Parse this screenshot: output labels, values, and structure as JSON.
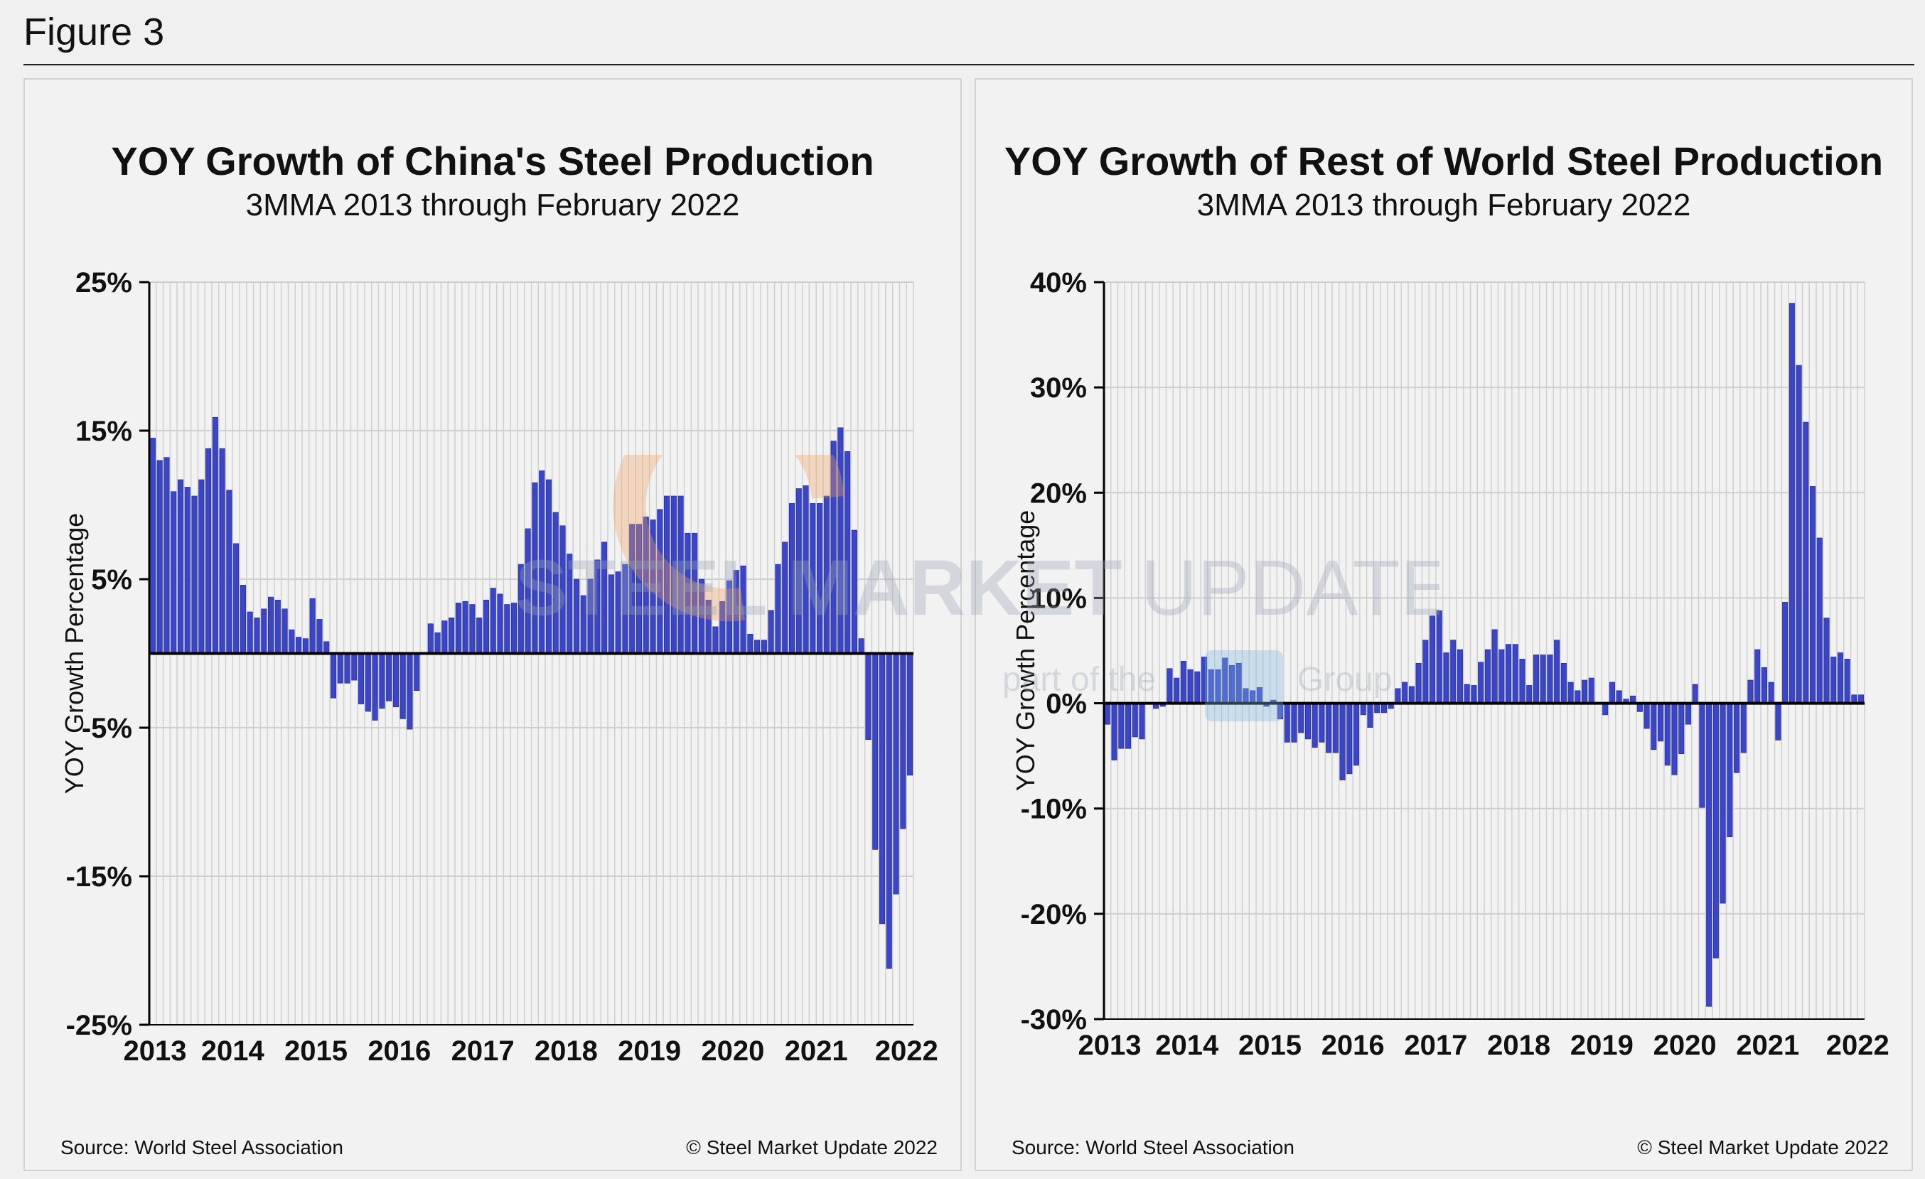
{
  "figure_title": "Figure 3",
  "panels": {
    "left": {
      "source": "Source: World Steel Association",
      "copyright": "© Steel Market Update 2022"
    },
    "right": {
      "source": "Source: World Steel Association",
      "copyright": "© Steel Market Update 2022"
    }
  },
  "watermark": {
    "brand": "STEEL MARKET",
    "brand_suffix": "UPDATE",
    "tagline_left": "part of the",
    "tagline_right": "Group"
  },
  "colors": {
    "bar": "#3a45c8",
    "bar_edge": "#1d2590",
    "grid": "#cfcfcf",
    "zero_line": "#000000",
    "watermark_orange": "#f0a060",
    "watermark_gray": "#9aa4b4"
  },
  "chart_data": [
    {
      "type": "bar",
      "title": "YOY Growth of China's Steel Production",
      "subtitle": "3MMA 2013 through February 2022",
      "xlabel": "",
      "ylabel": "YOY Growth Percentage",
      "ylim": [
        -25,
        25
      ],
      "yticks": [
        25,
        15,
        5,
        -5,
        -15,
        -25
      ],
      "ytick_labels": [
        "25%",
        "15%",
        "5%",
        "-5%",
        "-15%",
        "-25%"
      ],
      "x_tick_labels": [
        "2013",
        "2014",
        "2015",
        "2016",
        "2017",
        "2018",
        "2019",
        "2020",
        "2021",
        "2022"
      ],
      "x_start": "2013-01",
      "x_end": "2022-02",
      "grid": true,
      "values": [
        14.5,
        13.0,
        13.2,
        10.9,
        11.7,
        11.2,
        10.6,
        11.7,
        13.8,
        15.9,
        13.8,
        11.0,
        7.4,
        4.6,
        2.8,
        2.4,
        3.0,
        3.8,
        3.6,
        3.0,
        1.6,
        1.1,
        1.0,
        3.7,
        2.3,
        0.8,
        -3.0,
        -2.0,
        -2.0,
        -1.8,
        -3.4,
        -3.9,
        -4.5,
        -3.7,
        -3.2,
        -3.6,
        -4.4,
        -5.1,
        -2.5,
        0.0,
        2.0,
        1.4,
        2.2,
        2.4,
        3.4,
        3.5,
        3.3,
        2.4,
        3.6,
        4.4,
        4.0,
        3.3,
        3.4,
        6.0,
        8.4,
        11.5,
        12.3,
        11.7,
        9.5,
        8.6,
        6.7,
        5.0,
        3.9,
        5.0,
        6.3,
        7.5,
        5.3,
        5.5,
        6.0,
        8.7,
        8.7,
        9.2,
        9.0,
        9.7,
        10.6,
        10.6,
        10.6,
        8.1,
        8.1,
        5.0,
        3.6,
        1.8,
        3.5,
        4.9,
        5.6,
        5.9,
        1.3,
        0.9,
        0.9,
        2.9,
        6.0,
        7.5,
        10.1,
        11.1,
        11.3,
        10.1,
        10.1,
        10.6,
        14.3,
        15.2,
        13.6,
        8.3,
        1.0,
        -5.8,
        -13.2,
        -18.2,
        -21.2,
        -16.2,
        -11.8,
        -8.2
      ]
    },
    {
      "type": "bar",
      "title": "YOY Growth of Rest of World Steel Production",
      "subtitle": "3MMA 2013 through February 2022",
      "xlabel": "",
      "ylabel": "YOY Growth Percentage",
      "ylim": [
        -30,
        40
      ],
      "yticks": [
        40,
        30,
        20,
        10,
        0,
        -10,
        -20,
        -30
      ],
      "ytick_labels": [
        "40%",
        "30%",
        "20%",
        "10%",
        "0%",
        "-10%",
        "-20%",
        "-30%"
      ],
      "x_tick_labels": [
        "2013",
        "2014",
        "2015",
        "2016",
        "2017",
        "2018",
        "2019",
        "2020",
        "2021",
        "2022"
      ],
      "x_start": "2013-01",
      "x_end": "2022-02",
      "grid": true,
      "values": [
        -2.0,
        -5.4,
        -4.3,
        -4.3,
        -3.2,
        -3.4,
        0.0,
        -0.5,
        -0.3,
        3.3,
        2.4,
        4.0,
        3.2,
        3.0,
        4.4,
        3.2,
        3.2,
        4.3,
        3.6,
        3.8,
        1.4,
        1.2,
        1.5,
        -0.3,
        0.3,
        -1.5,
        -3.7,
        -3.7,
        -2.8,
        -3.4,
        -4.2,
        -3.7,
        -4.7,
        -4.7,
        -7.3,
        -6.7,
        -5.9,
        -1.1,
        -2.3,
        -0.9,
        -0.9,
        -0.5,
        1.4,
        2.0,
        1.6,
        3.8,
        6.0,
        8.3,
        8.8,
        4.8,
        6.0,
        5.1,
        1.8,
        1.7,
        3.9,
        5.1,
        7.0,
        5.1,
        5.6,
        5.6,
        4.2,
        1.7,
        4.6,
        4.6,
        4.6,
        6.0,
        3.8,
        2.0,
        1.2,
        2.2,
        2.4,
        0.0,
        -1.1,
        2.0,
        1.2,
        0.4,
        0.7,
        -0.8,
        -2.4,
        -4.4,
        -3.6,
        -5.9,
        -6.8,
        -4.8,
        -2.0,
        1.8,
        -9.9,
        -28.8,
        -24.2,
        -19.0,
        -12.7,
        -6.6,
        -4.7,
        2.2,
        5.1,
        3.4,
        2.0,
        -3.5,
        9.6,
        38.0,
        32.1,
        26.7,
        20.6,
        15.7,
        8.1,
        4.4,
        4.8,
        4.2,
        0.8,
        0.8
      ]
    }
  ]
}
